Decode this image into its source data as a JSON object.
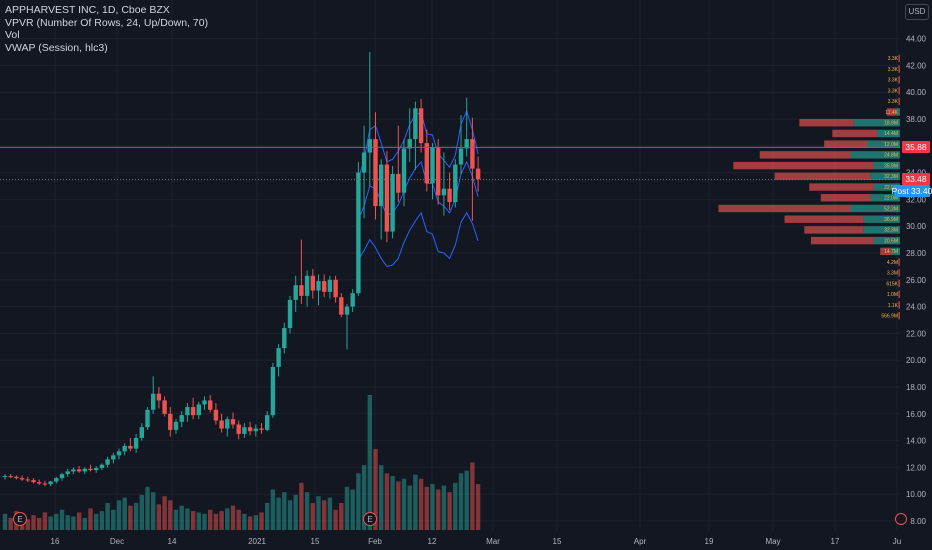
{
  "header": {
    "title": "APPHARVEST INC, 1D, Cboe BZX",
    "indicators": [
      "VPVR (Number Of Rows, 24, Up/Down, 70)",
      "Vol",
      "VWAP (Session, hlc3)"
    ],
    "currency": "USD"
  },
  "price_badges": [
    {
      "text": "35.88",
      "color": "#f23645"
    },
    {
      "text": "33.48",
      "color": "#f23645"
    },
    {
      "prefix": "Post",
      "text": "33.40",
      "color": "#2196f3"
    }
  ],
  "event_markers": [
    "E",
    "E"
  ],
  "colors": {
    "background": "#131722",
    "up": "#26a69a",
    "down": "#ef5350",
    "vwap": "#2962ff"
  },
  "chart_data": {
    "type": "candlestick",
    "ylim": [
      7.5,
      45.5
    ],
    "y_ticks": [
      8,
      10,
      12,
      14,
      16,
      18,
      20,
      22,
      24,
      26,
      28,
      30,
      32,
      34,
      36,
      38,
      40,
      42,
      44
    ],
    "y_tick_labels": [
      "8.00",
      "10.00",
      "12.00",
      "14.00",
      "16.00",
      "18.00",
      "20.00",
      "22.00",
      "24.00",
      "26.00",
      "28.00",
      "30.00",
      "32.00",
      "34.00",
      "36.00",
      "38.00",
      "40.00",
      "42.00",
      "44.00"
    ],
    "x_ticks": [
      "16",
      "Dec",
      "14",
      "2021",
      "15",
      "Feb",
      "12",
      "Mar",
      "15",
      "Apr",
      "19",
      "May",
      "17",
      "Ju"
    ],
    "candles": [
      {
        "o": 11.3,
        "h": 11.5,
        "l": 11.1,
        "c": 11.35
      },
      {
        "o": 11.35,
        "h": 11.5,
        "l": 11.2,
        "c": 11.3
      },
      {
        "o": 11.3,
        "h": 11.4,
        "l": 11.1,
        "c": 11.2
      },
      {
        "o": 11.2,
        "h": 11.4,
        "l": 11.0,
        "c": 11.1
      },
      {
        "o": 11.1,
        "h": 11.3,
        "l": 10.9,
        "c": 11.05
      },
      {
        "o": 11.05,
        "h": 11.2,
        "l": 10.8,
        "c": 10.9
      },
      {
        "o": 10.9,
        "h": 11.1,
        "l": 10.7,
        "c": 10.8
      },
      {
        "o": 10.8,
        "h": 11.0,
        "l": 10.6,
        "c": 10.75
      },
      {
        "o": 10.75,
        "h": 11.0,
        "l": 10.6,
        "c": 10.95
      },
      {
        "o": 10.95,
        "h": 11.3,
        "l": 10.8,
        "c": 11.2
      },
      {
        "o": 11.2,
        "h": 11.6,
        "l": 11.0,
        "c": 11.5
      },
      {
        "o": 11.5,
        "h": 11.9,
        "l": 11.3,
        "c": 11.7
      },
      {
        "o": 11.7,
        "h": 12.0,
        "l": 11.5,
        "c": 11.85
      },
      {
        "o": 11.85,
        "h": 12.1,
        "l": 11.6,
        "c": 11.7
      },
      {
        "o": 11.7,
        "h": 12.0,
        "l": 11.5,
        "c": 11.9
      },
      {
        "o": 11.9,
        "h": 12.2,
        "l": 11.7,
        "c": 11.8
      },
      {
        "o": 11.8,
        "h": 12.1,
        "l": 11.6,
        "c": 11.95
      },
      {
        "o": 11.95,
        "h": 12.3,
        "l": 11.8,
        "c": 12.2
      },
      {
        "o": 12.2,
        "h": 12.8,
        "l": 12.0,
        "c": 12.6
      },
      {
        "o": 12.6,
        "h": 13.1,
        "l": 12.3,
        "c": 12.9
      },
      {
        "o": 12.9,
        "h": 13.4,
        "l": 12.6,
        "c": 13.2
      },
      {
        "o": 13.2,
        "h": 13.8,
        "l": 12.9,
        "c": 13.6
      },
      {
        "o": 13.6,
        "h": 14.2,
        "l": 13.2,
        "c": 13.4
      },
      {
        "o": 13.4,
        "h": 14.5,
        "l": 13.1,
        "c": 14.2
      },
      {
        "o": 14.2,
        "h": 15.3,
        "l": 14.0,
        "c": 15.0
      },
      {
        "o": 15.0,
        "h": 16.5,
        "l": 14.8,
        "c": 16.3
      },
      {
        "o": 16.3,
        "h": 18.8,
        "l": 16.0,
        "c": 17.5
      },
      {
        "o": 17.5,
        "h": 18.0,
        "l": 16.4,
        "c": 17.0
      },
      {
        "o": 17.0,
        "h": 17.3,
        "l": 15.8,
        "c": 16.0
      },
      {
        "o": 16.0,
        "h": 16.5,
        "l": 14.3,
        "c": 14.8
      },
      {
        "o": 14.8,
        "h": 15.6,
        "l": 14.5,
        "c": 15.4
      },
      {
        "o": 15.4,
        "h": 16.2,
        "l": 15.0,
        "c": 15.9
      },
      {
        "o": 15.9,
        "h": 16.8,
        "l": 15.4,
        "c": 16.5
      },
      {
        "o": 16.5,
        "h": 17.2,
        "l": 15.6,
        "c": 15.9
      },
      {
        "o": 15.9,
        "h": 16.9,
        "l": 15.6,
        "c": 16.7
      },
      {
        "o": 16.7,
        "h": 17.3,
        "l": 16.3,
        "c": 17.0
      },
      {
        "o": 17.0,
        "h": 17.4,
        "l": 16.1,
        "c": 16.3
      },
      {
        "o": 16.3,
        "h": 16.8,
        "l": 15.2,
        "c": 15.5
      },
      {
        "o": 15.5,
        "h": 16.0,
        "l": 14.6,
        "c": 14.9
      },
      {
        "o": 14.9,
        "h": 15.8,
        "l": 14.3,
        "c": 15.6
      },
      {
        "o": 15.6,
        "h": 16.1,
        "l": 14.9,
        "c": 15.2
      },
      {
        "o": 15.2,
        "h": 15.5,
        "l": 14.1,
        "c": 14.5
      },
      {
        "o": 14.5,
        "h": 15.3,
        "l": 14.2,
        "c": 15.0
      },
      {
        "o": 15.0,
        "h": 15.4,
        "l": 14.4,
        "c": 14.7
      },
      {
        "o": 14.7,
        "h": 15.2,
        "l": 14.3,
        "c": 14.9
      },
      {
        "o": 14.9,
        "h": 15.3,
        "l": 14.5,
        "c": 14.8
      },
      {
        "o": 14.8,
        "h": 16.2,
        "l": 14.7,
        "c": 15.9
      },
      {
        "o": 15.9,
        "h": 19.8,
        "l": 15.7,
        "c": 19.5
      },
      {
        "o": 19.5,
        "h": 21.2,
        "l": 18.8,
        "c": 20.9
      },
      {
        "o": 20.9,
        "h": 22.8,
        "l": 20.5,
        "c": 22.4
      },
      {
        "o": 22.4,
        "h": 24.8,
        "l": 22.0,
        "c": 24.5
      },
      {
        "o": 24.5,
        "h": 26.3,
        "l": 23.6,
        "c": 25.6
      },
      {
        "o": 25.6,
        "h": 29.0,
        "l": 24.2,
        "c": 24.8
      },
      {
        "o": 24.8,
        "h": 26.7,
        "l": 24.0,
        "c": 26.3
      },
      {
        "o": 26.3,
        "h": 26.8,
        "l": 24.6,
        "c": 25.2
      },
      {
        "o": 25.2,
        "h": 26.4,
        "l": 24.1,
        "c": 25.9
      },
      {
        "o": 25.9,
        "h": 26.4,
        "l": 24.7,
        "c": 25.1
      },
      {
        "o": 25.1,
        "h": 26.3,
        "l": 24.6,
        "c": 26.0
      },
      {
        "o": 26.0,
        "h": 26.3,
        "l": 24.3,
        "c": 24.7
      },
      {
        "o": 24.7,
        "h": 25.0,
        "l": 23.2,
        "c": 23.4
      },
      {
        "o": 23.4,
        "h": 24.2,
        "l": 20.8,
        "c": 24.0
      },
      {
        "o": 24.0,
        "h": 25.3,
        "l": 23.6,
        "c": 25.0
      },
      {
        "o": 25.0,
        "h": 34.8,
        "l": 24.8,
        "c": 34.0
      },
      {
        "o": 34.0,
        "h": 37.5,
        "l": 30.6,
        "c": 35.5
      },
      {
        "o": 35.5,
        "h": 43.0,
        "l": 33.0,
        "c": 36.5
      },
      {
        "o": 36.5,
        "h": 38.5,
        "l": 30.5,
        "c": 31.5
      },
      {
        "o": 31.5,
        "h": 35.0,
        "l": 29.0,
        "c": 34.6
      },
      {
        "o": 34.6,
        "h": 35.6,
        "l": 28.8,
        "c": 29.6
      },
      {
        "o": 29.6,
        "h": 34.5,
        "l": 29.1,
        "c": 33.9
      },
      {
        "o": 33.9,
        "h": 37.5,
        "l": 31.8,
        "c": 32.5
      },
      {
        "o": 32.5,
        "h": 36.5,
        "l": 31.5,
        "c": 35.8
      },
      {
        "o": 35.8,
        "h": 38.8,
        "l": 34.8,
        "c": 36.5
      },
      {
        "o": 36.5,
        "h": 39.3,
        "l": 34.2,
        "c": 38.8
      },
      {
        "o": 38.8,
        "h": 39.5,
        "l": 35.5,
        "c": 36.2
      },
      {
        "o": 36.2,
        "h": 37.2,
        "l": 32.6,
        "c": 33.2
      },
      {
        "o": 33.2,
        "h": 36.2,
        "l": 32.0,
        "c": 35.9
      },
      {
        "o": 35.9,
        "h": 36.5,
        "l": 31.6,
        "c": 32.3
      },
      {
        "o": 32.3,
        "h": 35.5,
        "l": 30.8,
        "c": 32.8
      },
      {
        "o": 32.8,
        "h": 34.0,
        "l": 31.2,
        "c": 31.8
      },
      {
        "o": 31.8,
        "h": 35.0,
        "l": 31.4,
        "c": 34.6
      },
      {
        "o": 34.6,
        "h": 38.3,
        "l": 33.9,
        "c": 35.8
      },
      {
        "o": 35.8,
        "h": 39.6,
        "l": 35.2,
        "c": 36.5
      },
      {
        "o": 36.5,
        "h": 38.1,
        "l": 30.4,
        "c": 34.3
      },
      {
        "o": 34.3,
        "h": 35.2,
        "l": 32.6,
        "c": 33.5
      }
    ],
    "volume": [
      0.12,
      0.09,
      0.14,
      0.1,
      0.08,
      0.11,
      0.09,
      0.13,
      0.1,
      0.12,
      0.15,
      0.11,
      0.1,
      0.13,
      0.09,
      0.16,
      0.12,
      0.14,
      0.2,
      0.15,
      0.22,
      0.24,
      0.18,
      0.2,
      0.26,
      0.32,
      0.28,
      0.19,
      0.25,
      0.22,
      0.15,
      0.18,
      0.16,
      0.14,
      0.13,
      0.12,
      0.15,
      0.12,
      0.14,
      0.16,
      0.18,
      0.15,
      0.12,
      0.1,
      0.11,
      0.13,
      0.2,
      0.3,
      0.24,
      0.28,
      0.22,
      0.26,
      0.35,
      0.28,
      0.2,
      0.25,
      0.22,
      0.24,
      0.15,
      0.2,
      0.32,
      0.3,
      0.42,
      0.48,
      1.0,
      0.6,
      0.48,
      0.42,
      0.4,
      0.36,
      0.38,
      0.33,
      0.41,
      0.38,
      0.32,
      0.34,
      0.3,
      0.33,
      0.28,
      0.35,
      0.42,
      0.44,
      0.5,
      0.34
    ],
    "vwap_bands": {
      "start_index": 62,
      "upper": [
        33.5,
        35.0,
        37.2,
        37.5,
        36.2,
        34.8,
        35.0,
        35.6,
        36.4,
        37.6,
        38.3,
        38.5,
        36.9,
        36.8,
        35.4,
        34.9,
        34.4,
        35.3,
        37.6,
        38.6,
        37.2,
        35.4
      ],
      "mid": [
        30.5,
        31.5,
        33.0,
        32.8,
        31.8,
        30.8,
        31.0,
        31.6,
        32.6,
        33.6,
        34.3,
        34.8,
        33.2,
        33.2,
        31.8,
        31.5,
        31.0,
        32.0,
        33.9,
        34.8,
        33.7,
        32.2
      ],
      "lower": [
        27.5,
        28.2,
        29.0,
        28.4,
        27.6,
        27.0,
        27.1,
        27.6,
        28.8,
        29.7,
        30.4,
        31.0,
        29.6,
        29.4,
        28.1,
        28.0,
        27.6,
        28.6,
        30.3,
        31.0,
        30.2,
        28.9
      ]
    },
    "vpvr": {
      "rows": [
        {
          "price": 42.5,
          "up": 0.0,
          "down": 0.01,
          "label": "3.3K"
        },
        {
          "price": 41.7,
          "up": 0.0,
          "down": 0.01,
          "label": "3.3K"
        },
        {
          "price": 40.9,
          "up": 0.0,
          "down": 0.01,
          "label": "3.3K"
        },
        {
          "price": 40.1,
          "up": 0.0,
          "down": 0.01,
          "label": "3.3K"
        },
        {
          "price": 39.3,
          "up": 0.0,
          "down": 0.01,
          "label": "3.3K"
        },
        {
          "price": 38.5,
          "up": 0.02,
          "down": 0.06,
          "label": "11.4K"
        },
        {
          "price": 37.7,
          "up": 0.28,
          "down": 0.33,
          "label": "18.9M"
        },
        {
          "price": 36.9,
          "up": 0.14,
          "down": 0.27,
          "label": "14.4M"
        },
        {
          "price": 36.1,
          "up": 0.2,
          "down": 0.26,
          "label": "12.0M"
        },
        {
          "price": 35.3,
          "up": 0.3,
          "down": 0.55,
          "label": "24.8M"
        },
        {
          "price": 34.5,
          "up": 0.16,
          "down": 0.85,
          "label": "35.9M"
        },
        {
          "price": 33.7,
          "up": 0.18,
          "down": 0.58,
          "label": "32.3M"
        },
        {
          "price": 32.9,
          "up": 0.16,
          "down": 0.39,
          "label": "22.9M"
        },
        {
          "price": 32.1,
          "up": 0.18,
          "down": 0.3,
          "label": "22.0M"
        },
        {
          "price": 31.3,
          "up": 0.3,
          "down": 0.8,
          "label": "52.2M"
        },
        {
          "price": 30.5,
          "up": 0.22,
          "down": 0.48,
          "label": "36.9M"
        },
        {
          "price": 29.7,
          "up": 0.22,
          "down": 0.36,
          "label": "32.3M"
        },
        {
          "price": 28.9,
          "up": 0.16,
          "down": 0.38,
          "label": "20.5M"
        },
        {
          "price": 28.1,
          "up": 0.05,
          "down": 0.07,
          "label": "14.7M"
        },
        {
          "price": 27.3,
          "up": 0.0,
          "down": 0.01,
          "label": "4.2M"
        },
        {
          "price": 26.5,
          "up": 0.0,
          "down": 0.01,
          "label": "3.3M"
        },
        {
          "price": 25.7,
          "up": 0.0,
          "down": 0.01,
          "label": "615K"
        },
        {
          "price": 24.9,
          "up": 0.0,
          "down": 0.01,
          "label": "1.0M"
        },
        {
          "price": 24.1,
          "up": 0.0,
          "down": 0.01,
          "label": "1.1K"
        },
        {
          "price": 23.3,
          "up": 0.0,
          "down": 0.01,
          "label": "566.9M"
        }
      ]
    },
    "horizontal_lines": [
      {
        "price": 35.88,
        "style": "solid",
        "color": "#f23645"
      },
      {
        "price": 33.48,
        "style": "dotted",
        "color": "#787b86"
      }
    ]
  }
}
